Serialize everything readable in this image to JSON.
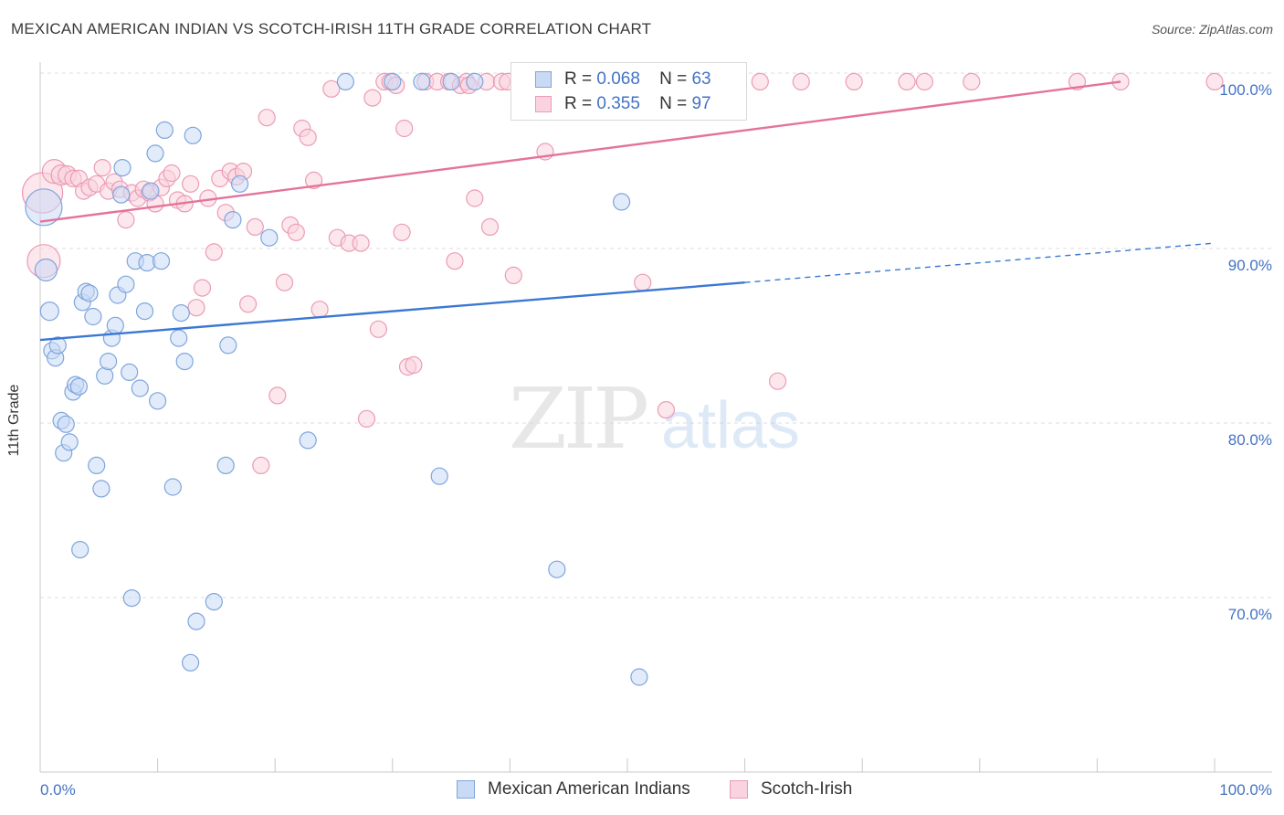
{
  "header": {
    "title": "MEXICAN AMERICAN INDIAN VS SCOTCH-IRISH 11TH GRADE CORRELATION CHART",
    "source": "Source: ZipAtlas.com"
  },
  "watermark": {
    "zip": "ZIP",
    "atlas": "atlas"
  },
  "legend": {
    "blue": {
      "r_label": "R =",
      "r_value": "0.068",
      "n_label": "N =",
      "n_value": "63"
    },
    "pink": {
      "r_label": "R =",
      "r_value": "0.355",
      "n_label": "N =",
      "n_value": "97"
    }
  },
  "bottom_legend": {
    "blue_label": "Mexican American Indians",
    "pink_label": "Scotch-Irish"
  },
  "colors": {
    "blue_fill": "#c9daf5",
    "blue_stroke": "#7fa5dc",
    "blue_line": "#3a78d4",
    "pink_fill": "#f9d3df",
    "pink_stroke": "#ec9bb5",
    "pink_line": "#e4739a",
    "axis_text": "#4472c4",
    "grid": "#dcdcdc"
  },
  "chart_data": {
    "type": "scatter",
    "title": "MEXICAN AMERICAN INDIAN VS SCOTCH-IRISH 11TH GRADE CORRELATION CHART",
    "xlabel": "",
    "ylabel": "11th Grade",
    "xlim": [
      0,
      100
    ],
    "ylim": [
      61.5,
      101.5
    ],
    "x_tick_labels": [
      "0.0%",
      "100.0%"
    ],
    "y_ticks": [
      70,
      80,
      90,
      100
    ],
    "y_tick_labels": [
      "70.0%",
      "80.0%",
      "90.0%",
      "100.0%"
    ],
    "series": [
      {
        "name": "Mexican American Indians",
        "color": "blue",
        "R": 0.068,
        "N": 63,
        "trend": {
          "x0": 0,
          "y0": 85.6,
          "x1": 60,
          "y1": 88.8,
          "dash_x1": 100,
          "dash_y1": 91.0
        },
        "points": [
          [
            0.3,
            93.0,
            20
          ],
          [
            0.5,
            89.5,
            12
          ],
          [
            0.8,
            87.2,
            10
          ],
          [
            1.0,
            85.0,
            9
          ],
          [
            1.3,
            84.6,
            9
          ],
          [
            1.5,
            85.3,
            9
          ],
          [
            1.8,
            81.1,
            9
          ],
          [
            2.0,
            79.3,
            9
          ],
          [
            2.2,
            80.9,
            9
          ],
          [
            2.5,
            79.9,
            9
          ],
          [
            2.8,
            82.7,
            9
          ],
          [
            3.0,
            83.1,
            9
          ],
          [
            3.3,
            83.0,
            9
          ],
          [
            3.6,
            87.7,
            9
          ],
          [
            3.9,
            88.3,
            9
          ],
          [
            4.2,
            88.2,
            9
          ],
          [
            4.5,
            86.9,
            9
          ],
          [
            4.8,
            78.6,
            9
          ],
          [
            5.2,
            77.3,
            9
          ],
          [
            5.5,
            83.6,
            9
          ],
          [
            5.8,
            84.4,
            9
          ],
          [
            6.1,
            85.7,
            9
          ],
          [
            6.4,
            86.4,
            9
          ],
          [
            6.6,
            88.1,
            9
          ],
          [
            6.9,
            93.7,
            9
          ],
          [
            7.0,
            95.2,
            9
          ],
          [
            7.3,
            88.7,
            9
          ],
          [
            7.6,
            83.8,
            9
          ],
          [
            7.8,
            71.2,
            9
          ],
          [
            8.1,
            90.0,
            9
          ],
          [
            8.5,
            82.9,
            9
          ],
          [
            8.9,
            87.2,
            9
          ],
          [
            9.1,
            89.9,
            9
          ],
          [
            9.4,
            93.9,
            9
          ],
          [
            9.8,
            96.0,
            9
          ],
          [
            10.0,
            82.2,
            9
          ],
          [
            10.3,
            90.0,
            9
          ],
          [
            10.6,
            97.3,
            9
          ],
          [
            11.3,
            77.4,
            9
          ],
          [
            11.8,
            85.7,
            9
          ],
          [
            12.0,
            87.1,
            9
          ],
          [
            12.3,
            84.4,
            9
          ],
          [
            12.8,
            67.6,
            9
          ],
          [
            13.0,
            97.0,
            9
          ],
          [
            13.3,
            69.9,
            9
          ],
          [
            14.8,
            71.0,
            9
          ],
          [
            15.8,
            78.6,
            9
          ],
          [
            16.0,
            85.3,
            9
          ],
          [
            16.4,
            92.3,
            9
          ],
          [
            17.0,
            94.3,
            9
          ],
          [
            19.5,
            91.3,
            9
          ],
          [
            3.4,
            73.9,
            9
          ],
          [
            22.8,
            80.0,
            9
          ],
          [
            26.0,
            100.0,
            9
          ],
          [
            30.0,
            100.0,
            9
          ],
          [
            32.5,
            100.0,
            9
          ],
          [
            34.0,
            78.0,
            9
          ],
          [
            35.0,
            100.0,
            9
          ],
          [
            37.0,
            100.0,
            9
          ],
          [
            44.0,
            72.8,
            9
          ],
          [
            49.0,
            100.0,
            9
          ],
          [
            49.5,
            93.3,
            9
          ],
          [
            51.0,
            66.8,
            9
          ]
        ]
      },
      {
        "name": "Scotch-Irish",
        "color": "pink",
        "R": 0.355,
        "N": 97,
        "trend": {
          "x0": 0,
          "y0": 92.2,
          "x1": 92,
          "y1": 100.0
        },
        "points": [
          [
            0.2,
            93.8,
            22
          ],
          [
            0.3,
            90.0,
            18
          ],
          [
            1.2,
            95.0,
            13
          ],
          [
            1.8,
            94.8,
            11
          ],
          [
            2.3,
            94.8,
            10
          ],
          [
            2.8,
            94.6,
            9
          ],
          [
            3.3,
            94.6,
            9
          ],
          [
            3.7,
            93.9,
            9
          ],
          [
            4.2,
            94.1,
            9
          ],
          [
            4.8,
            94.3,
            9
          ],
          [
            5.3,
            95.2,
            9
          ],
          [
            5.8,
            93.9,
            9
          ],
          [
            6.3,
            94.4,
            9
          ],
          [
            6.8,
            94.0,
            9
          ],
          [
            7.3,
            92.3,
            9
          ],
          [
            7.8,
            93.8,
            9
          ],
          [
            8.3,
            93.5,
            9
          ],
          [
            8.8,
            94.0,
            9
          ],
          [
            9.3,
            93.8,
            9
          ],
          [
            9.8,
            93.2,
            9
          ],
          [
            10.3,
            94.1,
            9
          ],
          [
            10.8,
            94.6,
            9
          ],
          [
            11.2,
            94.9,
            9
          ],
          [
            11.7,
            93.4,
            9
          ],
          [
            12.3,
            93.2,
            9
          ],
          [
            12.8,
            94.3,
            9
          ],
          [
            13.3,
            87.4,
            9
          ],
          [
            13.8,
            88.5,
            9
          ],
          [
            14.3,
            93.5,
            9
          ],
          [
            14.8,
            90.5,
            9
          ],
          [
            15.3,
            94.6,
            9
          ],
          [
            15.8,
            92.7,
            9
          ],
          [
            16.2,
            95.0,
            9
          ],
          [
            16.7,
            94.7,
            9
          ],
          [
            17.3,
            95.0,
            9
          ],
          [
            17.7,
            87.6,
            9
          ],
          [
            18.3,
            91.9,
            9
          ],
          [
            18.8,
            78.6,
            9
          ],
          [
            19.3,
            98.0,
            9
          ],
          [
            20.2,
            82.5,
            9
          ],
          [
            20.8,
            88.8,
            9
          ],
          [
            21.3,
            92.0,
            9
          ],
          [
            21.8,
            91.6,
            9
          ],
          [
            22.3,
            97.4,
            9
          ],
          [
            22.8,
            96.9,
            9
          ],
          [
            23.3,
            94.5,
            9
          ],
          [
            23.8,
            87.3,
            9
          ],
          [
            24.8,
            99.6,
            9
          ],
          [
            25.3,
            91.3,
            9
          ],
          [
            26.3,
            91.0,
            9
          ],
          [
            27.3,
            91.0,
            9
          ],
          [
            27.8,
            81.2,
            9
          ],
          [
            28.3,
            99.1,
            9
          ],
          [
            28.8,
            86.2,
            9
          ],
          [
            29.3,
            100.0,
            9
          ],
          [
            29.8,
            100.0,
            9
          ],
          [
            30.3,
            99.8,
            9
          ],
          [
            30.8,
            91.6,
            9
          ],
          [
            31.0,
            97.4,
            9
          ],
          [
            31.3,
            84.1,
            9
          ],
          [
            31.8,
            84.2,
            9
          ],
          [
            32.8,
            100.0,
            9
          ],
          [
            33.8,
            100.0,
            9
          ],
          [
            34.8,
            100.0,
            9
          ],
          [
            35.3,
            90.0,
            9
          ],
          [
            35.8,
            99.8,
            9
          ],
          [
            36.3,
            100.0,
            9
          ],
          [
            37.0,
            93.5,
            9
          ],
          [
            38.0,
            100.0,
            9
          ],
          [
            38.3,
            91.9,
            9
          ],
          [
            39.3,
            100.0,
            9
          ],
          [
            39.8,
            100.0,
            9
          ],
          [
            40.3,
            89.2,
            9
          ],
          [
            41.3,
            100.0,
            9
          ],
          [
            43.8,
            100.0,
            9
          ],
          [
            45.8,
            100.0,
            9
          ],
          [
            47.3,
            100.0,
            9
          ],
          [
            43.0,
            96.1,
            9
          ],
          [
            48.8,
            100.0,
            9
          ],
          [
            50.8,
            100.0,
            9
          ],
          [
            51.3,
            88.8,
            9
          ],
          [
            53.3,
            81.7,
            9
          ],
          [
            56.3,
            100.0,
            9
          ],
          [
            57.3,
            99.6,
            9
          ],
          [
            59.3,
            100.0,
            9
          ],
          [
            61.3,
            100.0,
            9
          ],
          [
            62.8,
            83.3,
            9
          ],
          [
            64.8,
            100.0,
            9
          ],
          [
            69.3,
            100.0,
            9
          ],
          [
            73.8,
            100.0,
            9
          ],
          [
            75.3,
            100.0,
            9
          ],
          [
            79.3,
            100.0,
            9
          ],
          [
            88.3,
            100.0,
            9
          ],
          [
            92.0,
            100.0,
            9
          ],
          [
            100.0,
            100.0,
            9
          ],
          [
            36.5,
            99.8,
            9
          ],
          [
            41.0,
            100.0,
            9
          ]
        ]
      }
    ]
  }
}
